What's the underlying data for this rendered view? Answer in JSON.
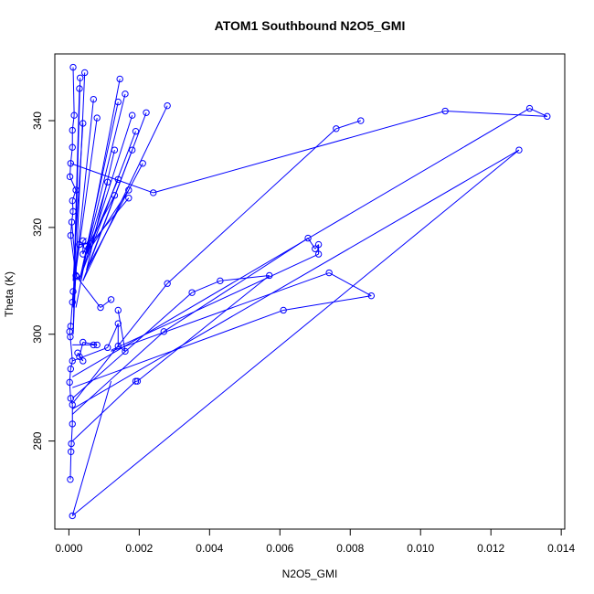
{
  "chart_data": {
    "type": "scatter",
    "title": "ATOM1 Southbound N2O5_GMI",
    "xlabel": "N2O5_GMI",
    "ylabel": "Theta (K)",
    "xlim": [
      -0.0004,
      0.0141
    ],
    "ylim": [
      263.5,
      352.5
    ],
    "x_ticks": [
      0.0,
      0.002,
      0.004,
      0.006,
      0.008,
      0.01,
      0.012,
      0.014
    ],
    "x_tick_labels": [
      "0.000",
      "0.002",
      "0.004",
      "0.006",
      "0.008",
      "0.010",
      "0.012",
      "0.014"
    ],
    "y_ticks": [
      280,
      300,
      320,
      340
    ],
    "y_tick_labels": [
      "280",
      "300",
      "320",
      "340"
    ],
    "grid": false,
    "line_style": "points connected by lines",
    "series_color": "#0000ff",
    "points": [
      [
        4e-05,
        272.8
      ],
      [
        6e-05,
        278.0
      ],
      [
        7e-05,
        279.5
      ],
      [
        0.0001,
        283.2
      ],
      [
        0.0001,
        286.8
      ],
      [
        5e-05,
        288.0
      ],
      [
        2e-05,
        291.0
      ],
      [
        5e-05,
        293.5
      ],
      [
        0.0001,
        295.0
      ],
      [
        4e-05,
        299.5
      ],
      [
        2e-05,
        300.5
      ],
      [
        5e-05,
        301.5
      ],
      [
        0.0001,
        306.0
      ],
      [
        0.00012,
        308.0
      ],
      [
        0.0002,
        311.0
      ],
      [
        5e-05,
        318.5
      ],
      [
        8e-05,
        321.0
      ],
      [
        0.00012,
        323.0
      ],
      [
        0.0001,
        325.0
      ],
      [
        0.0002,
        327.0
      ],
      [
        3e-05,
        329.5
      ],
      [
        5e-05,
        332.0
      ],
      [
        0.0001,
        335.0
      ],
      [
        0.0001,
        338.2
      ],
      [
        0.00015,
        341.0
      ],
      [
        0.00012,
        350.0
      ],
      [
        0.00032,
        348.0
      ],
      [
        0.00045,
        349.0
      ],
      [
        0.0003,
        346.0
      ],
      [
        0.0004,
        339.5
      ],
      [
        0.0008,
        340.5
      ],
      [
        0.0007,
        344.0
      ],
      [
        0.00145,
        347.8
      ],
      [
        0.0016,
        345.0
      ],
      [
        0.0014,
        343.5
      ],
      [
        0.0018,
        341.0
      ],
      [
        0.0022,
        341.5
      ],
      [
        0.0028,
        342.8
      ],
      [
        0.0019,
        338.0
      ],
      [
        0.0013,
        334.5
      ],
      [
        0.0018,
        334.5
      ],
      [
        0.0021,
        332.0
      ],
      [
        0.0014,
        329.0
      ],
      [
        0.0011,
        328.5
      ],
      [
        0.0017,
        327.0
      ],
      [
        0.0013,
        326.0
      ],
      [
        0.0017,
        325.5
      ],
      [
        0.0024,
        326.5
      ],
      [
        0.0004,
        317.5
      ],
      [
        0.0004,
        315.0
      ],
      [
        0.0005,
        316.5
      ],
      [
        0.0006,
        317.0
      ],
      [
        0.0003,
        316.8
      ],
      [
        0.00022,
        310.8
      ],
      [
        0.0009,
        305.0
      ],
      [
        0.0012,
        306.5
      ],
      [
        0.0014,
        304.5
      ],
      [
        0.0011,
        297.5
      ],
      [
        0.0014,
        302.0
      ],
      [
        0.0014,
        297.8
      ],
      [
        0.0016,
        296.8
      ],
      [
        0.0007,
        298.0
      ],
      [
        0.0008,
        298.0
      ],
      [
        0.0004,
        298.5
      ],
      [
        0.0003,
        295.8
      ],
      [
        0.0004,
        295.0
      ],
      [
        0.00025,
        296.5
      ],
      [
        0.0019,
        291.2
      ],
      [
        0.00195,
        291.2
      ],
      [
        0.0027,
        300.5
      ],
      [
        0.0028,
        309.5
      ],
      [
        0.0035,
        307.8
      ],
      [
        0.0043,
        310.0
      ],
      [
        0.0057,
        311.0
      ],
      [
        0.0061,
        304.5
      ],
      [
        0.0068,
        318.0
      ],
      [
        0.007,
        316.0
      ],
      [
        0.0071,
        316.8
      ],
      [
        0.0071,
        315.0
      ],
      [
        0.0074,
        311.5
      ],
      [
        0.0086,
        307.2
      ],
      [
        0.0076,
        338.5
      ],
      [
        0.0083,
        340.0
      ],
      [
        0.0107,
        341.8
      ],
      [
        0.0131,
        342.3
      ],
      [
        0.0136,
        340.8
      ],
      [
        0.0128,
        334.5
      ],
      [
        0.0001,
        266.0
      ]
    ],
    "connections": [
      [
        4e-05,
        272.8,
        6e-05,
        278.0
      ],
      [
        6e-05,
        278.0,
        7e-05,
        279.5
      ],
      [
        7e-05,
        279.5,
        0.0001,
        283.2
      ],
      [
        0.0001,
        283.2,
        0.0001,
        286.8
      ],
      [
        0.0001,
        286.8,
        5e-05,
        288.0
      ],
      [
        5e-05,
        288.0,
        2e-05,
        291.0
      ],
      [
        2e-05,
        291.0,
        5e-05,
        293.5
      ],
      [
        5e-05,
        293.5,
        0.0001,
        295.0
      ],
      [
        0.0001,
        295.0,
        4e-05,
        299.5
      ],
      [
        4e-05,
        299.5,
        2e-05,
        300.5
      ],
      [
        2e-05,
        300.5,
        5e-05,
        301.5
      ],
      [
        5e-05,
        301.5,
        0.0001,
        306.0
      ],
      [
        0.0001,
        306.0,
        0.00012,
        308.0
      ],
      [
        0.00012,
        308.0,
        0.0002,
        311.0
      ],
      [
        0.0002,
        311.0,
        5e-05,
        318.5
      ],
      [
        5e-05,
        318.5,
        8e-05,
        321.0
      ],
      [
        8e-05,
        321.0,
        0.00012,
        323.0
      ],
      [
        0.00012,
        323.0,
        0.0001,
        325.0
      ],
      [
        0.0001,
        325.0,
        0.0002,
        327.0
      ],
      [
        0.0002,
        327.0,
        3e-05,
        329.5
      ],
      [
        3e-05,
        329.5,
        5e-05,
        332.0
      ],
      [
        5e-05,
        332.0,
        0.0001,
        335.0
      ],
      [
        0.0001,
        335.0,
        0.0001,
        338.2
      ],
      [
        0.0001,
        338.2,
        0.00015,
        341.0
      ],
      [
        0.00015,
        341.0,
        0.00012,
        350.0
      ],
      [
        0.00012,
        300.0,
        0.00032,
        348.0
      ],
      [
        0.00012,
        300.0,
        0.00045,
        349.0
      ],
      [
        0.00012,
        305.0,
        0.0003,
        346.0
      ],
      [
        0.00012,
        310.0,
        0.0004,
        339.5
      ],
      [
        0.0002,
        312.0,
        0.0008,
        340.5
      ],
      [
        0.0002,
        312.0,
        0.0007,
        344.0
      ],
      [
        0.0002,
        305.0,
        0.00145,
        347.8
      ],
      [
        0.0003,
        310.0,
        0.0016,
        345.0
      ],
      [
        0.0003,
        310.0,
        0.0014,
        343.5
      ],
      [
        0.0003,
        310.0,
        0.0018,
        341.0
      ],
      [
        0.0004,
        310.0,
        0.0022,
        341.5
      ],
      [
        0.0004,
        310.0,
        0.0028,
        342.8
      ],
      [
        0.0004,
        312.0,
        0.0019,
        338.0
      ],
      [
        0.0005,
        312.0,
        0.0013,
        334.5
      ],
      [
        0.0005,
        312.0,
        0.0018,
        334.5
      ],
      [
        0.0005,
        312.0,
        0.0021,
        332.0
      ],
      [
        0.0005,
        315.0,
        0.0014,
        329.0
      ],
      [
        0.0005,
        315.0,
        0.0011,
        328.5
      ],
      [
        0.0005,
        315.0,
        0.0017,
        327.0
      ],
      [
        0.0005,
        316.0,
        0.0013,
        326.0
      ],
      [
        0.0005,
        316.0,
        0.0017,
        325.5
      ],
      [
        0.0005,
        318.0,
        0.0004,
        317.5
      ],
      [
        0.0004,
        317.5,
        0.0004,
        315.0
      ],
      [
        0.0004,
        315.0,
        0.0005,
        316.5
      ],
      [
        0.0005,
        316.5,
        0.0006,
        317.0
      ],
      [
        0.0006,
        317.0,
        0.0003,
        316.8
      ],
      [
        5e-05,
        332.0,
        0.0024,
        326.5
      ],
      [
        0.0024,
        326.5,
        0.0107,
        341.8
      ],
      [
        0.0107,
        341.8,
        0.0136,
        340.8
      ],
      [
        8e-05,
        321.0,
        0.00022,
        310.8
      ],
      [
        0.00022,
        310.8,
        0.0009,
        305.0
      ],
      [
        0.0009,
        305.0,
        0.0012,
        306.5
      ],
      [
        0.0001,
        295.0,
        0.0011,
        297.5
      ],
      [
        0.0011,
        297.5,
        0.0014,
        302.0
      ],
      [
        0.0014,
        302.0,
        0.0014,
        297.8
      ],
      [
        0.0014,
        297.8,
        0.0016,
        296.8
      ],
      [
        0.0016,
        296.8,
        0.0014,
        304.5
      ],
      [
        0.0001,
        298.0,
        0.0007,
        298.0
      ],
      [
        0.0007,
        298.0,
        0.0008,
        298.0
      ],
      [
        0.0008,
        298.0,
        0.0004,
        298.5
      ],
      [
        0.0004,
        298.5,
        0.0003,
        295.8
      ],
      [
        0.0003,
        295.8,
        0.0004,
        295.0
      ],
      [
        0.0004,
        295.0,
        0.00025,
        296.5
      ],
      [
        0.0001,
        280.0,
        0.0019,
        291.2
      ],
      [
        0.0019,
        291.2,
        0.00195,
        291.2
      ],
      [
        0.00195,
        291.2,
        0.0057,
        311.0
      ],
      [
        0.0001,
        285.0,
        0.0027,
        300.5
      ],
      [
        0.0027,
        300.5,
        0.0068,
        318.0
      ],
      [
        0.0068,
        318.0,
        0.007,
        316.0
      ],
      [
        0.007,
        316.0,
        0.0071,
        316.8
      ],
      [
        0.0071,
        316.8,
        0.0071,
        315.0
      ],
      [
        0.0071,
        315.0,
        0.0012,
        297.0
      ],
      [
        0.0001,
        287.0,
        0.0028,
        309.5
      ],
      [
        0.0028,
        309.5,
        0.0076,
        338.5
      ],
      [
        0.0076,
        338.5,
        0.0083,
        340.0
      ],
      [
        0.0001,
        288.0,
        0.0035,
        307.8
      ],
      [
        0.0035,
        307.8,
        0.0043,
        310.0
      ],
      [
        0.0043,
        310.0,
        0.0057,
        311.0
      ],
      [
        0.0001,
        290.0,
        0.0061,
        304.5
      ],
      [
        0.0061,
        304.5,
        0.0086,
        307.2
      ],
      [
        0.0086,
        307.2,
        0.0074,
        311.5
      ],
      [
        0.0074,
        311.5,
        0.0012,
        296.8
      ],
      [
        0.0001,
        292.0,
        0.0131,
        342.3
      ],
      [
        0.0131,
        342.3,
        0.0136,
        340.8
      ],
      [
        0.0001,
        286.0,
        0.0128,
        334.5
      ],
      [
        0.0001,
        266.0,
        0.0128,
        334.5
      ],
      [
        0.0001,
        266.0,
        0.0012,
        291.2
      ]
    ]
  }
}
